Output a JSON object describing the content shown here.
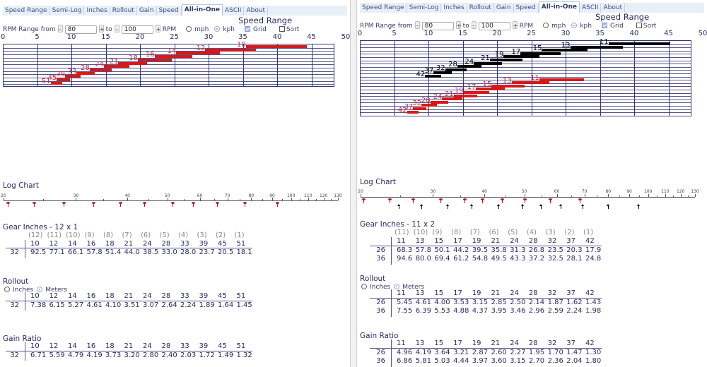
{
  "panels": [
    {
      "tabs": [
        "Speed Range",
        "Semi-Log",
        "Inches",
        "Rollout",
        "Gain",
        "Speed",
        "All-in-One",
        "ASCII",
        "About"
      ],
      "active_tab": "All-in-One",
      "title": "Speed Range",
      "controls": {
        "rpm_label": "RPM Range from",
        "rpm_from": "80",
        "to_label": "to",
        "rpm_to": "100",
        "rpm_unit": "RPM",
        "minus": "-",
        "plus": "+",
        "mph_label": "mph",
        "kph_label": "kph",
        "unit_selected": "kph",
        "grid_label": "Grid",
        "grid_checked": true,
        "sort_label": "Sort",
        "sort_checked": false
      },
      "speed_chart": {
        "type": "bar",
        "x_ticks": [
          "0",
          "5",
          "10",
          "15",
          "20",
          "25",
          "30",
          "35",
          "40",
          "45",
          "50"
        ],
        "ring_colors": [
          "#d81818"
        ],
        "label_colors": [
          "#c0304a"
        ],
        "grid": true
      },
      "log_chart": {
        "title": "Log Chart",
        "ticks": [
          "20",
          "30",
          "40",
          "50",
          "60",
          "70",
          "80",
          "90",
          "100",
          "110",
          "120",
          "130"
        ],
        "marker_colors": [
          "#c01818"
        ],
        "marker_styles": [
          "pin"
        ]
      },
      "gear_inches": {
        "title": "Gear Inches - 12 x 1",
        "positions": [
          "(12)",
          "(11)",
          "(10)",
          "(9)",
          "(8)",
          "(7)",
          "(6)",
          "(5)",
          "(4)",
          "(3)",
          "(2)",
          "(1)"
        ],
        "cogs": [
          "10",
          "12",
          "14",
          "16",
          "18",
          "21",
          "24",
          "28",
          "33",
          "39",
          "45",
          "51"
        ],
        "rows": [
          {
            "ring": "32",
            "values": [
              "92.5",
              "77.1",
              "66.1",
              "57.8",
              "51.4",
              "44.0",
              "38.5",
              "33.0",
              "28.0",
              "23.7",
              "20.5",
              "18.1"
            ]
          }
        ]
      },
      "rollout": {
        "title": "Rollout",
        "inches_label": "Inches",
        "meters_label": "Meters",
        "selected": "Meters",
        "cogs": [
          "10",
          "12",
          "14",
          "16",
          "18",
          "21",
          "24",
          "28",
          "33",
          "39",
          "45",
          "51"
        ],
        "rows": [
          {
            "ring": "32",
            "values": [
              "7.38",
              "6.15",
              "5.27",
              "4.61",
              "4.10",
              "3.51",
              "3.07",
              "2.64",
              "2.24",
              "1.89",
              "1.64",
              "1.45"
            ]
          }
        ]
      },
      "gain_ratio": {
        "title": "Gain Ratio",
        "cogs": [
          "10",
          "12",
          "14",
          "16",
          "18",
          "21",
          "24",
          "28",
          "33",
          "39",
          "45",
          "51"
        ],
        "rows": [
          {
            "ring": "32",
            "values": [
              "6.71",
              "5.59",
              "4.79",
              "4.19",
              "3.73",
              "3.20",
              "2.80",
              "2.40",
              "2.03",
              "1.72",
              "1.49",
              "1.32"
            ]
          }
        ]
      }
    },
    {
      "tabs": [
        "Speed Range",
        "Semi-Log",
        "Inches",
        "Rollout",
        "Gain",
        "Speed",
        "All-in-One",
        "ASCII",
        "About"
      ],
      "active_tab": "All-in-One",
      "title": "Speed Range",
      "controls": {
        "rpm_label": "RPM Range from",
        "rpm_from": "80",
        "to_label": "to",
        "rpm_to": "100",
        "rpm_unit": "RPM",
        "minus": "-",
        "plus": "+",
        "mph_label": "mph",
        "kph_label": "kph",
        "unit_selected": "kph",
        "grid_label": "Grid",
        "grid_checked": true,
        "sort_label": "Sort",
        "sort_checked": false
      },
      "speed_chart": {
        "type": "bar",
        "x_ticks": [
          "0",
          "5",
          "10",
          "15",
          "20",
          "25",
          "30",
          "35",
          "40",
          "45",
          "50"
        ],
        "ring_colors": [
          "#d81818",
          "#000000"
        ],
        "label_colors": [
          "#c0304a",
          "#000000"
        ],
        "grid": true
      },
      "log_chart": {
        "title": "Log Chart",
        "ticks": [
          "20",
          "30",
          "40",
          "50",
          "60",
          "70",
          "80",
          "90",
          "100",
          "110",
          "120",
          "130"
        ],
        "marker_colors": [
          "#c01818",
          "#000000"
        ],
        "marker_styles": [
          "pin",
          "arrow"
        ]
      },
      "gear_inches": {
        "title": "Gear Inches - 11 x 2",
        "positions": [
          "(11)",
          "(10)",
          "(9)",
          "(8)",
          "(7)",
          "(6)",
          "(5)",
          "(4)",
          "(3)",
          "(2)",
          "(1)"
        ],
        "cogs": [
          "11",
          "13",
          "15",
          "17",
          "19",
          "21",
          "24",
          "28",
          "32",
          "37",
          "42"
        ],
        "rows": [
          {
            "ring": "26",
            "values": [
              "68.3",
              "57.8",
              "50.1",
              "44.2",
              "39.5",
              "35.8",
              "31.3",
              "26.8",
              "23.5",
              "20.3",
              "17.9"
            ]
          },
          {
            "ring": "36",
            "values": [
              "94.6",
              "80.0",
              "69.4",
              "61.2",
              "54.8",
              "49.5",
              "43.3",
              "37.2",
              "32.5",
              "28.1",
              "24.8"
            ]
          }
        ]
      },
      "rollout": {
        "title": "Rollout",
        "inches_label": "Inches",
        "meters_label": "Meters",
        "selected": "Meters",
        "cogs": [
          "11",
          "13",
          "15",
          "17",
          "19",
          "21",
          "24",
          "28",
          "32",
          "37",
          "42"
        ],
        "rows": [
          {
            "ring": "26",
            "values": [
              "5.45",
              "4.61",
              "4.00",
              "3.53",
              "3.15",
              "2.85",
              "2.50",
              "2.14",
              "1.87",
              "1.62",
              "1.43"
            ]
          },
          {
            "ring": "36",
            "values": [
              "7.55",
              "6.39",
              "5.53",
              "4.88",
              "4.37",
              "3.95",
              "3.46",
              "2.96",
              "2.59",
              "2.24",
              "1.98"
            ]
          }
        ]
      },
      "gain_ratio": {
        "title": "Gain Ratio",
        "cogs": [
          "11",
          "13",
          "15",
          "17",
          "19",
          "21",
          "24",
          "28",
          "32",
          "37",
          "42"
        ],
        "rows": [
          {
            "ring": "26",
            "values": [
              "4.96",
              "4.19",
              "3.64",
              "3.21",
              "2.87",
              "2.60",
              "2.27",
              "1.95",
              "1.70",
              "1.47",
              "1.30"
            ]
          },
          {
            "ring": "36",
            "values": [
              "6.86",
              "5.81",
              "5.03",
              "4.44",
              "3.97",
              "3.60",
              "3.15",
              "2.70",
              "2.36",
              "2.04",
              "1.80"
            ]
          }
        ]
      }
    }
  ]
}
